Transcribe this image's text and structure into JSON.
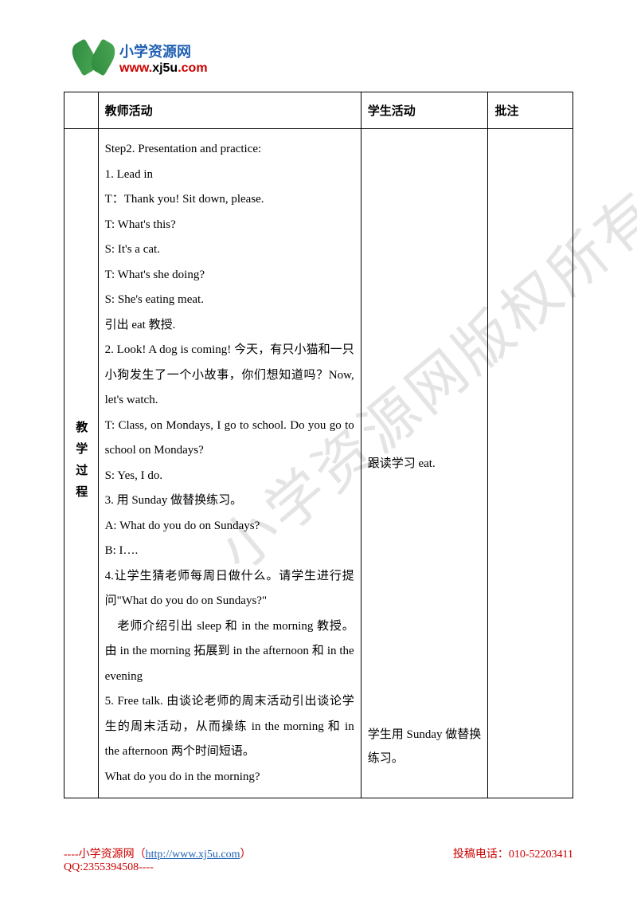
{
  "logo": {
    "title": "小学资源网",
    "url_www": "www.",
    "url_domain": "xj5u",
    "url_com": ".com"
  },
  "watermark": "小学资源网版权所有",
  "table": {
    "headers": {
      "teacher": "教师活动",
      "student": "学生活动",
      "notes": "批注"
    },
    "sidebar_label": "教学过程",
    "teacher_content": [
      "Step2. Presentation and practice:",
      "1. Lead in",
      "T：Thank you! Sit down, please.",
      "T: What's this?",
      "S: It's a cat.",
      "T: What's she doing?",
      "S: She's eating meat.",
      "引出 eat 教授.",
      "2. Look! A dog is coming! 今天，有只小猫和一只小狗发生了一个小故事，你们想知道吗？Now, let's watch.",
      "T: Class, on Mondays, I go to school. Do you go to school on Mondays?",
      "S: Yes, I do.",
      "3. 用 Sunday 做替换练习。",
      "A: What do you do on Sundays?",
      "B: I….",
      "4.让学生猜老师每周日做什么。请学生进行提问\"What do you do on Sundays?\"",
      "　老师介绍引出 sleep 和 in the morning 教授。由 in the morning 拓展到 in the afternoon 和 in the evening",
      "5. Free talk. 由谈论老师的周末活动引出谈论学生的周末活动，从而操练 in the morning 和 in the afternoon 两个时间短语。",
      "What do you do in the morning?"
    ],
    "student_content_1": "跟读学习 eat.",
    "student_content_2": "学生用 Sunday 做替换练习。"
  },
  "footer": {
    "left_prefix": "----小学资源网（",
    "left_url": "http://www.xj5u.com",
    "left_suffix": "）",
    "qq": "QQ:2355394508----",
    "right": "投稿电话：010-52203411"
  }
}
